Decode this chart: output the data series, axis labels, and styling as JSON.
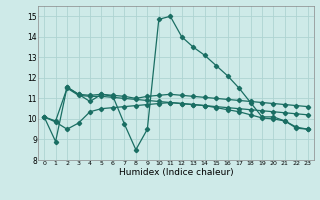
{
  "title": "",
  "xlabel": "Humidex (Indice chaleur)",
  "bg_color": "#ceeae8",
  "grid_color": "#aed4d2",
  "line_color": "#1a6e63",
  "xlim": [
    -0.5,
    23.5
  ],
  "ylim": [
    8,
    15.5
  ],
  "yticks": [
    8,
    9,
    10,
    11,
    12,
    13,
    14,
    15
  ],
  "xticks": [
    0,
    1,
    2,
    3,
    4,
    5,
    6,
    7,
    8,
    9,
    10,
    11,
    12,
    13,
    14,
    15,
    16,
    17,
    18,
    19,
    20,
    21,
    22,
    23
  ],
  "line1_x": [
    0,
    1,
    2,
    3,
    4,
    5,
    6,
    7,
    8,
    9,
    10,
    11,
    12,
    13,
    14,
    15,
    16,
    17,
    18,
    19,
    20,
    21,
    22,
    23
  ],
  "line1_y": [
    10.1,
    8.9,
    11.55,
    11.2,
    10.85,
    11.2,
    11.1,
    9.75,
    8.5,
    9.5,
    14.85,
    15.0,
    14.0,
    13.5,
    13.1,
    12.6,
    12.1,
    11.5,
    10.8,
    10.1,
    10.1,
    9.9,
    9.55,
    9.5
  ],
  "line2_x": [
    2,
    3,
    4,
    5,
    6,
    7,
    8,
    9,
    10,
    11,
    12,
    13,
    14,
    15,
    16,
    17,
    18,
    19,
    20,
    21,
    22,
    23
  ],
  "line2_y": [
    11.55,
    11.2,
    11.15,
    11.2,
    11.15,
    11.1,
    11.0,
    11.1,
    11.15,
    11.2,
    11.15,
    11.1,
    11.05,
    11.0,
    10.95,
    10.9,
    10.85,
    10.8,
    10.75,
    10.7,
    10.65,
    10.6
  ],
  "line3_x": [
    0,
    1,
    2,
    3,
    4,
    5,
    6,
    7,
    8,
    9,
    10,
    11,
    12,
    13,
    14,
    15,
    16,
    17,
    18,
    19,
    20,
    21,
    22,
    23
  ],
  "line3_y": [
    10.1,
    9.9,
    11.5,
    11.15,
    11.1,
    11.1,
    11.05,
    11.0,
    10.95,
    10.9,
    10.85,
    10.8,
    10.75,
    10.7,
    10.65,
    10.6,
    10.55,
    10.5,
    10.45,
    10.4,
    10.35,
    10.3,
    10.25,
    10.2
  ],
  "line4_x": [
    0,
    1,
    2,
    3,
    4,
    5,
    6,
    7,
    8,
    9,
    10,
    11,
    12,
    13,
    14,
    15,
    16,
    17,
    18,
    19,
    20,
    21,
    22,
    23
  ],
  "line4_y": [
    10.1,
    9.85,
    9.5,
    9.8,
    10.35,
    10.5,
    10.55,
    10.6,
    10.65,
    10.7,
    10.75,
    10.8,
    10.75,
    10.7,
    10.65,
    10.55,
    10.45,
    10.35,
    10.2,
    10.05,
    10.0,
    9.9,
    9.6,
    9.5
  ]
}
